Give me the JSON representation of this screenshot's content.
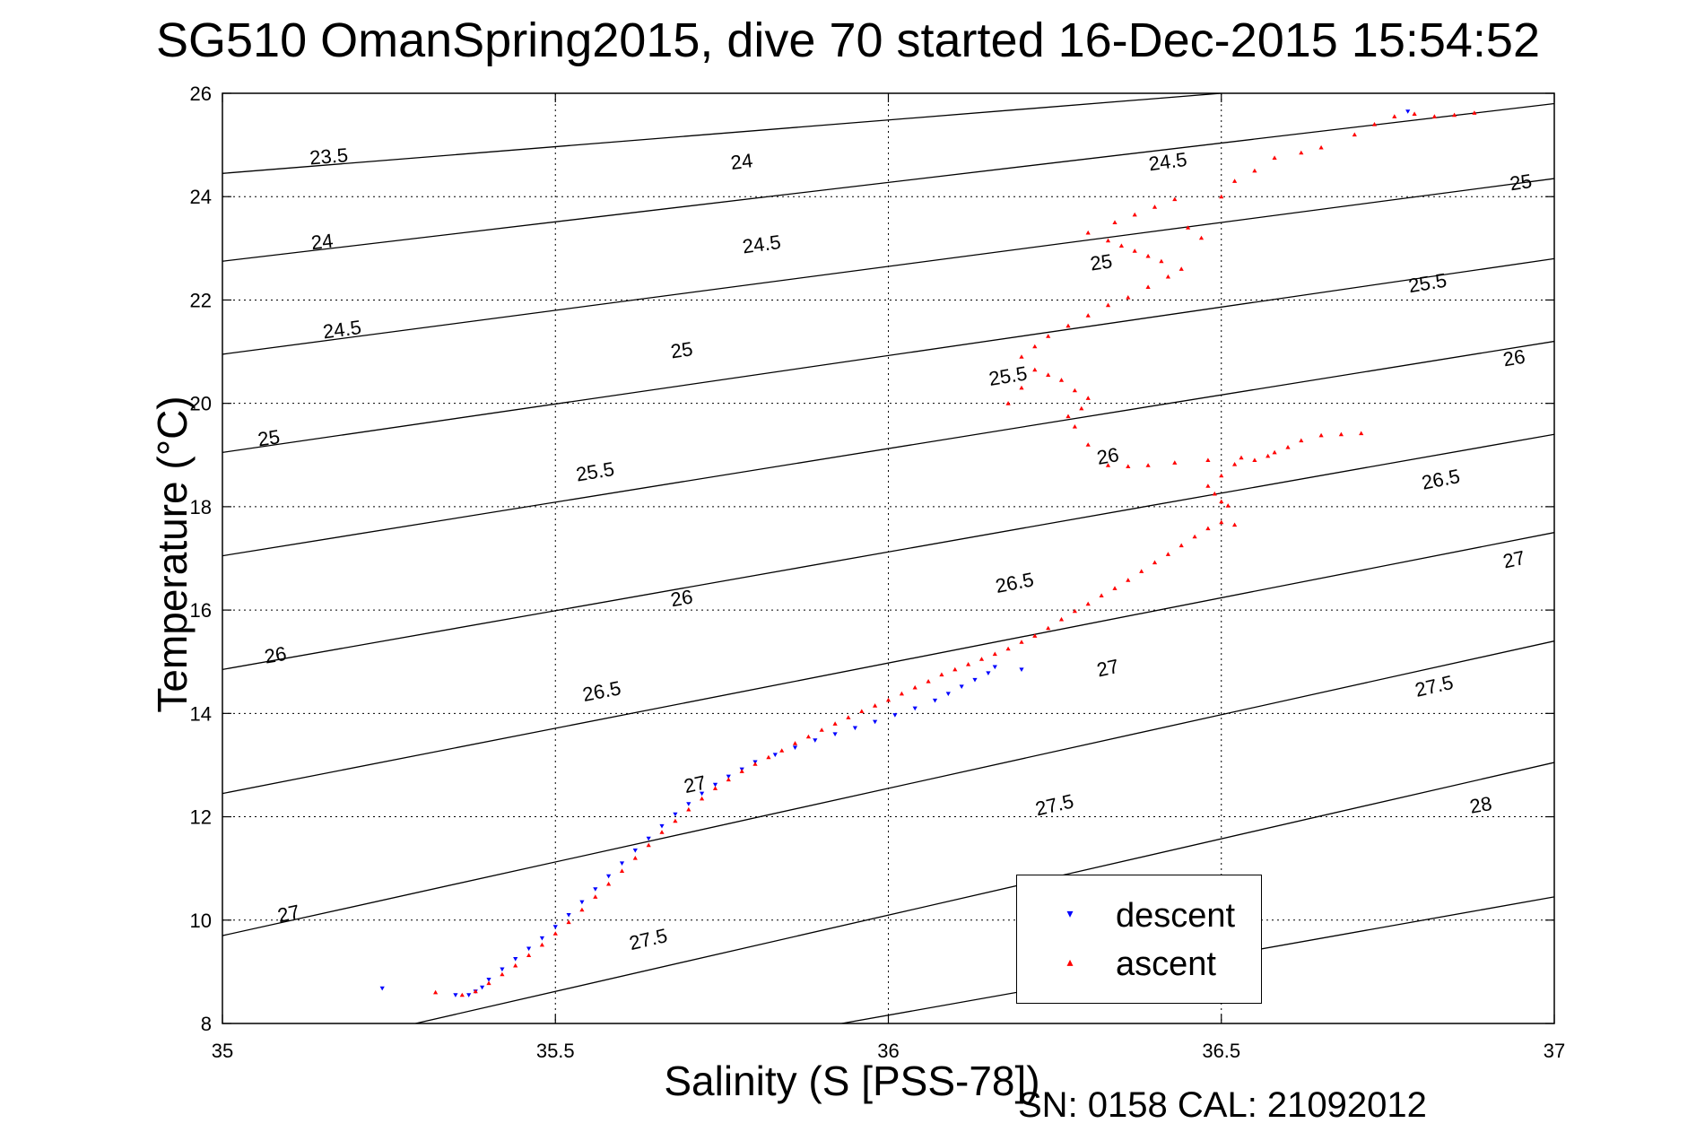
{
  "title": "SG510 OmanSpring2015, dive 70 started 16-Dec-2015 15:54:52",
  "footer": "SN: 0158  CAL: 21092012",
  "chart_data": {
    "type": "scatter",
    "title": "SG510 OmanSpring2015, dive 70 started 16-Dec-2015 15:54:52",
    "xlabel": "Salinity (S [PSS-78])",
    "ylabel": "Temperature (°C)",
    "xlim": [
      35,
      37
    ],
    "ylim": [
      8,
      26
    ],
    "xticks": [
      35,
      35.5,
      36,
      36.5,
      37
    ],
    "xtick_labels": [
      "35",
      "35.5",
      "36",
      "36.5",
      "37"
    ],
    "yticks": [
      8,
      10,
      12,
      14,
      16,
      18,
      20,
      22,
      24,
      26
    ],
    "ytick_labels": [
      "8",
      "10",
      "12",
      "14",
      "16",
      "18",
      "20",
      "22",
      "24",
      "26"
    ],
    "grid": true,
    "legend_position": "bottom-right",
    "isopycnals": [
      {
        "label": "23.5",
        "points": [
          [
            35,
            24.45
          ],
          [
            36.5,
            26
          ]
        ]
      },
      {
        "label": "24",
        "points": [
          [
            35,
            22.75
          ],
          [
            37,
            25.8
          ]
        ]
      },
      {
        "label": "24.5",
        "points": [
          [
            35,
            20.95
          ],
          [
            37,
            24.35
          ]
        ]
      },
      {
        "label": "25",
        "points": [
          [
            35,
            19.05
          ],
          [
            37,
            22.8
          ]
        ]
      },
      {
        "label": "25.5",
        "points": [
          [
            35,
            17.05
          ],
          [
            37,
            21.2
          ]
        ]
      },
      {
        "label": "26",
        "points": [
          [
            35,
            14.85
          ],
          [
            37,
            19.4
          ]
        ]
      },
      {
        "label": "26.5",
        "points": [
          [
            35,
            12.45
          ],
          [
            37,
            17.5
          ]
        ]
      },
      {
        "label": "27",
        "points": [
          [
            35,
            9.7
          ],
          [
            37,
            15.4
          ]
        ]
      },
      {
        "label": "27.5",
        "points": [
          [
            35.29,
            8
          ],
          [
            37,
            13.05
          ]
        ]
      },
      {
        "label": "28",
        "points": [
          [
            35.93,
            8
          ],
          [
            37,
            10.45
          ]
        ]
      }
    ],
    "isopycnal_labels": [
      {
        "text": "23.5",
        "x": 35.16,
        "y": 24.75
      },
      {
        "text": "24",
        "x": 35.15,
        "y": 23.1
      },
      {
        "text": "24.5",
        "x": 35.18,
        "y": 21.4
      },
      {
        "text": "25",
        "x": 35.07,
        "y": 19.3
      },
      {
        "text": "26",
        "x": 35.08,
        "y": 15.1
      },
      {
        "text": "27",
        "x": 35.1,
        "y": 10.1
      },
      {
        "text": "24",
        "x": 35.78,
        "y": 24.65
      },
      {
        "text": "24.5",
        "x": 35.81,
        "y": 23.05
      },
      {
        "text": "25",
        "x": 35.69,
        "y": 21.0
      },
      {
        "text": "25.5",
        "x": 35.56,
        "y": 18.65
      },
      {
        "text": "26",
        "x": 35.69,
        "y": 16.2
      },
      {
        "text": "26.5",
        "x": 35.57,
        "y": 14.4
      },
      {
        "text": "27",
        "x": 35.71,
        "y": 12.6
      },
      {
        "text": "27.5",
        "x": 35.64,
        "y": 9.6
      },
      {
        "text": "24.5",
        "x": 36.42,
        "y": 24.65
      },
      {
        "text": "25",
        "x": 36.32,
        "y": 22.7
      },
      {
        "text": "25.5",
        "x": 36.18,
        "y": 20.5
      },
      {
        "text": "26",
        "x": 36.33,
        "y": 18.95
      },
      {
        "text": "26.5",
        "x": 36.19,
        "y": 16.5
      },
      {
        "text": "27",
        "x": 36.33,
        "y": 14.85
      },
      {
        "text": "27.5",
        "x": 36.25,
        "y": 12.2
      },
      {
        "text": "25",
        "x": 36.95,
        "y": 24.25
      },
      {
        "text": "25.5",
        "x": 36.81,
        "y": 22.3
      },
      {
        "text": "26",
        "x": 36.94,
        "y": 20.85
      },
      {
        "text": "26.5",
        "x": 36.83,
        "y": 18.5
      },
      {
        "text": "27",
        "x": 36.94,
        "y": 16.95
      },
      {
        "text": "27.5",
        "x": 36.82,
        "y": 14.5
      },
      {
        "text": "28",
        "x": 36.89,
        "y": 12.2
      }
    ],
    "series": [
      {
        "name": "descent",
        "color": "#0000ff",
        "marker": "triangle-down",
        "x": [
          35.24,
          35.35,
          35.37,
          35.38,
          35.39,
          35.4,
          35.42,
          35.44,
          35.46,
          35.48,
          35.5,
          35.52,
          35.54,
          35.56,
          35.58,
          35.6,
          35.62,
          35.64,
          35.66,
          35.68,
          35.7,
          35.72,
          35.74,
          35.76,
          35.78,
          35.8,
          35.83,
          35.86,
          35.89,
          35.92,
          35.95,
          35.98,
          36.01,
          36.04,
          36.07,
          36.09,
          36.11,
          36.13,
          36.15,
          36.16,
          36.2,
          36.78
        ],
        "y": [
          8.68,
          8.55,
          8.55,
          8.62,
          8.7,
          8.85,
          9.05,
          9.25,
          9.45,
          9.65,
          9.87,
          10.1,
          10.35,
          10.6,
          10.85,
          11.1,
          11.35,
          11.58,
          11.82,
          12.05,
          12.25,
          12.45,
          12.62,
          12.78,
          12.92,
          13.06,
          13.2,
          13.34,
          13.48,
          13.6,
          13.72,
          13.84,
          13.97,
          14.1,
          14.25,
          14.38,
          14.52,
          14.65,
          14.78,
          14.9,
          14.85,
          25.65
        ]
      },
      {
        "name": "ascent",
        "color": "#ff0000",
        "marker": "triangle-up",
        "x": [
          35.32,
          35.36,
          35.38,
          35.4,
          35.42,
          35.44,
          35.46,
          35.48,
          35.5,
          35.52,
          35.54,
          35.56,
          35.58,
          35.6,
          35.62,
          35.64,
          35.66,
          35.68,
          35.7,
          35.72,
          35.74,
          35.76,
          35.78,
          35.8,
          35.82,
          35.84,
          35.86,
          35.88,
          35.9,
          35.92,
          35.94,
          35.96,
          35.98,
          36.0,
          36.02,
          36.04,
          36.06,
          36.08,
          36.1,
          36.12,
          36.14,
          36.16,
          36.18,
          36.2,
          36.22,
          36.24,
          36.26,
          36.28,
          36.3,
          36.32,
          36.34,
          36.36,
          36.38,
          36.4,
          36.42,
          36.44,
          36.46,
          36.48,
          36.5,
          36.52,
          36.51,
          36.5,
          36.49,
          36.48,
          36.5,
          36.52,
          36.55,
          36.57,
          36.58,
          36.6,
          36.62,
          36.65,
          36.68,
          36.71,
          36.53,
          36.48,
          36.43,
          36.39,
          36.36,
          36.33,
          36.3,
          36.28,
          36.27,
          36.29,
          36.3,
          36.28,
          36.26,
          36.24,
          36.22,
          36.2,
          36.18,
          36.2,
          36.22,
          36.24,
          36.27,
          36.3,
          36.33,
          36.36,
          36.39,
          36.42,
          36.44,
          36.41,
          36.39,
          36.37,
          36.35,
          36.33,
          36.3,
          36.34,
          36.37,
          36.4,
          36.43,
          36.45,
          36.47,
          36.5,
          36.52,
          36.55,
          36.58,
          36.62,
          36.65,
          36.7,
          36.73,
          36.76,
          36.79,
          36.82,
          36.85,
          36.88
        ],
        "y": [
          8.6,
          8.55,
          8.62,
          8.78,
          8.95,
          9.12,
          9.32,
          9.52,
          9.74,
          9.96,
          10.2,
          10.45,
          10.7,
          10.95,
          11.2,
          11.45,
          11.7,
          11.92,
          12.14,
          12.35,
          12.55,
          12.72,
          12.88,
          13.02,
          13.15,
          13.28,
          13.42,
          13.55,
          13.68,
          13.8,
          13.92,
          14.04,
          14.15,
          14.26,
          14.38,
          14.5,
          14.62,
          14.75,
          14.85,
          14.95,
          15.05,
          15.15,
          15.25,
          15.38,
          15.5,
          15.65,
          15.82,
          15.98,
          16.12,
          16.28,
          16.42,
          16.58,
          16.75,
          16.92,
          17.08,
          17.25,
          17.42,
          17.58,
          17.7,
          17.65,
          18.02,
          18.1,
          18.25,
          18.4,
          18.6,
          18.82,
          18.9,
          18.98,
          19.05,
          19.15,
          19.28,
          19.38,
          19.4,
          19.42,
          18.95,
          18.9,
          18.85,
          18.8,
          18.78,
          18.8,
          19.2,
          19.55,
          19.75,
          19.9,
          20.1,
          20.25,
          20.45,
          20.55,
          20.65,
          20.3,
          20.0,
          20.9,
          21.1,
          21.3,
          21.5,
          21.7,
          21.9,
          22.05,
          22.25,
          22.45,
          22.6,
          22.75,
          22.85,
          22.95,
          23.05,
          23.15,
          23.3,
          23.5,
          23.65,
          23.8,
          23.95,
          23.4,
          23.2,
          24.0,
          24.3,
          24.5,
          24.75,
          24.85,
          24.95,
          25.2,
          25.4,
          25.55,
          25.6,
          25.55,
          25.58,
          25.62
        ]
      }
    ]
  }
}
